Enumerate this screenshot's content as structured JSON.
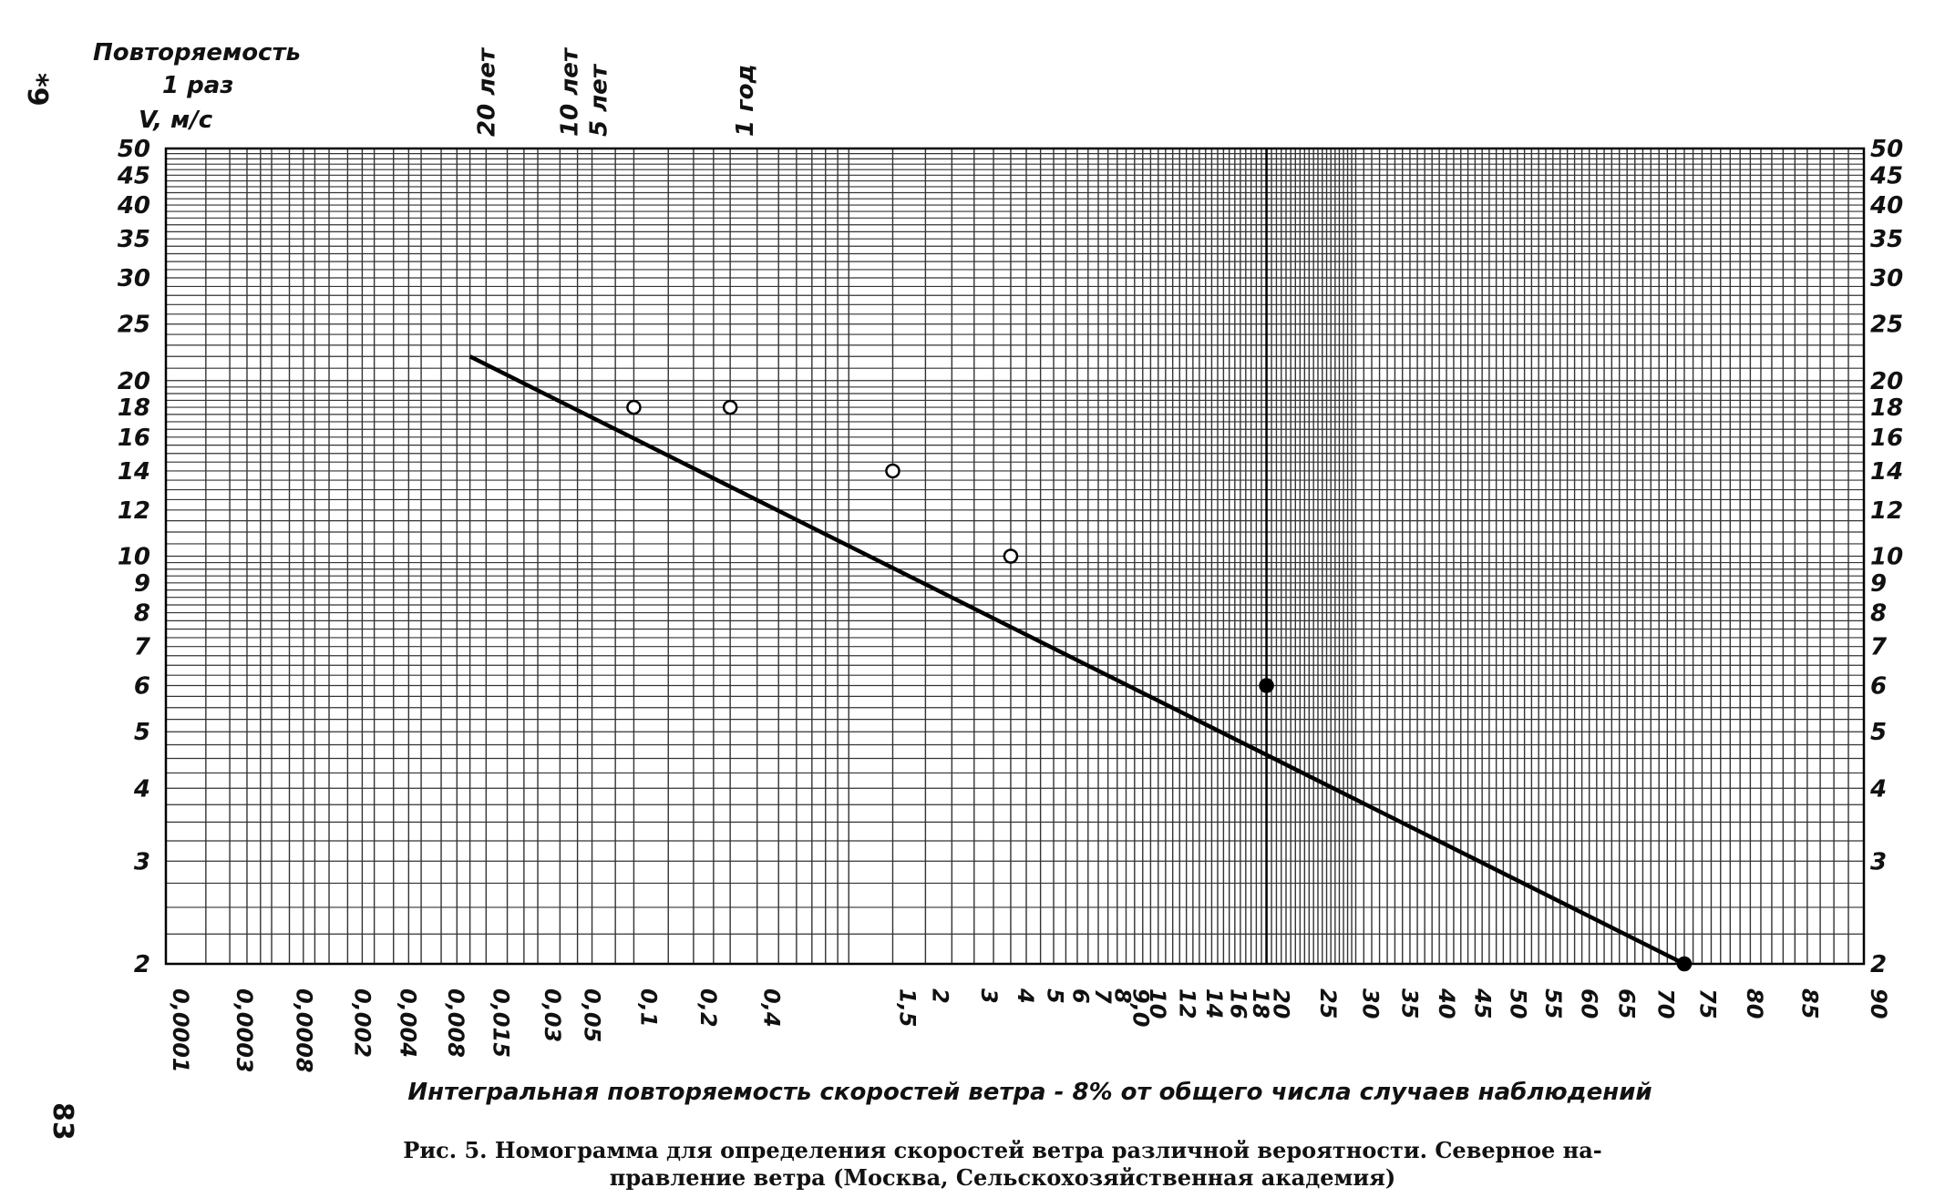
{
  "page": {
    "side_marker": "*9",
    "page_number": "83",
    "caption_line1": "Рис. 5. Номограмма для определения скоростей ветра различной вероятности. Северное на-",
    "caption_line2": "правление ветра (Москва, Сельскохозяйственная академия)"
  },
  "chart_data": {
    "type": "line",
    "title": "",
    "top_axis_title": "Повторяемость",
    "top_axis_sub": "1 раз",
    "ylabel": "V, м/с",
    "xlabel": "Интегральная повторяемость скоростей ветра - 8% от общего числа случаев наблюдений",
    "y_scale": "log",
    "ylim": [
      2,
      50
    ],
    "x_scale": "probability (normal)",
    "xlim": [
      0.0001,
      90
    ],
    "grid": true,
    "y_ticks": [
      "2",
      "3",
      "4",
      "5",
      "6",
      "7",
      "8",
      "9",
      "10",
      "12",
      "14",
      "16",
      "18",
      "20",
      "25",
      "30",
      "35",
      "40",
      "45",
      "50"
    ],
    "y_ticks_right": [
      "2",
      "3",
      "4",
      "5",
      "6",
      "7",
      "8",
      "9",
      "10",
      "12",
      "14",
      "16",
      "18",
      "20",
      "25",
      "30",
      "35",
      "40",
      "45",
      "50"
    ],
    "x_ticks": [
      "0,0001",
      "0,0003",
      "0,0008",
      "0,002",
      "0,004",
      "0,008",
      "0,015",
      "0,03",
      "0,05",
      "0,1",
      "0,2",
      "0,4",
      "1,5",
      "2",
      "3",
      "4",
      "5",
      "6",
      "7",
      "8",
      "9,0",
      "10",
      "12",
      "14",
      "16",
      "18",
      "20",
      "25",
      "30",
      "35",
      "40",
      "45",
      "50",
      "55",
      "60",
      "65",
      "70",
      "75",
      "80",
      "85",
      "90"
    ],
    "top_ticks": [
      "20 лет",
      "10 лет",
      "5 лет",
      "1 год"
    ],
    "observed_points": [
      {
        "x": 0.1,
        "y": 18,
        "style": "open"
      },
      {
        "x": 0.3,
        "y": 18,
        "style": "open"
      },
      {
        "x": 1.5,
        "y": 14,
        "style": "open"
      },
      {
        "x": 4,
        "y": 10,
        "style": "open"
      },
      {
        "x": 20,
        "y": 6,
        "style": "filled"
      },
      {
        "x": 74,
        "y": 2,
        "style": "filled"
      }
    ],
    "fitted_line": [
      {
        "x": 0.012,
        "y": 22
      },
      {
        "x": 74,
        "y": 2
      }
    ]
  }
}
